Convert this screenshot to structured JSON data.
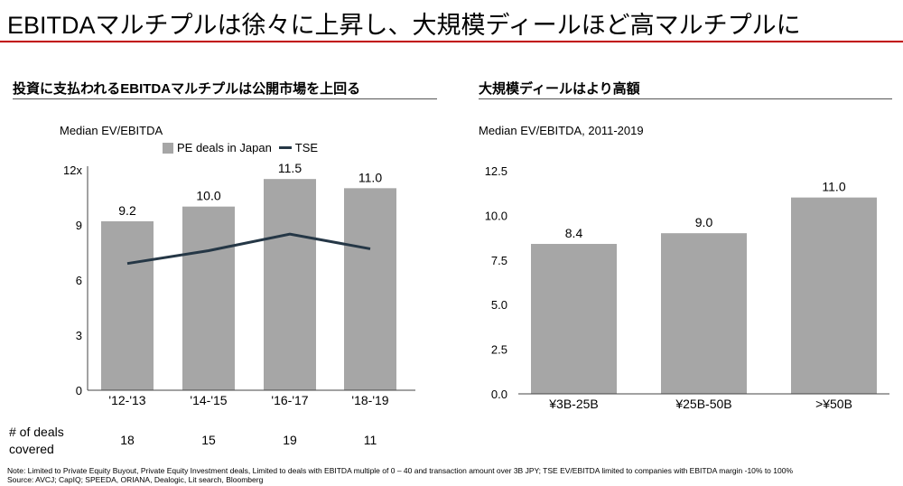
{
  "title": "EBITDAマルチプルは徐々に上昇し、大規模ディールほど高マルチプルに",
  "left_heading": "投資に支払われるEBITDAマルチプルは公開市場を上回る",
  "right_heading": "大規模ディールはより高額",
  "deals_label_1": "# of deals",
  "deals_label_2": "covered",
  "deals": [
    "18",
    "15",
    "19",
    "11"
  ],
  "notes": {
    "note": "Note: Limited to Private Equity Buyout, Private Equity Investment deals, Limited to deals with EBITDA multiple of 0 – 40 and transaction amount over 3B JPY; TSE EV/EBITDA limited to companies with EBITDA margin -10% to 100%",
    "source": "Source: AVCJ; CapIQ; SPEEDA, ORIANA, Dealogic, Lit search, Bloomberg"
  },
  "colors": {
    "bar": "#a6a6a6",
    "line": "#253746",
    "accent": "#c00000"
  },
  "chart_data": [
    {
      "type": "bar",
      "title": "Median EV/EBITDA",
      "categories": [
        "'12-'13",
        "'14-'15",
        "'16-'17",
        "'18-'19"
      ],
      "series": [
        {
          "name": "PE deals in Japan",
          "type": "bar",
          "values": [
            9.2,
            10.0,
            11.5,
            11.0
          ],
          "labels": [
            "9.2",
            "10.0",
            "11.5",
            "11.0"
          ]
        },
        {
          "name": "TSE",
          "type": "line",
          "values": [
            6.9,
            7.6,
            8.5,
            7.7
          ]
        }
      ],
      "ylim": [
        0,
        12
      ],
      "yticks": [
        "0",
        "3",
        "6",
        "9",
        "12x"
      ],
      "ytick_values": [
        0,
        3,
        6,
        9,
        12
      ],
      "legend": "top"
    },
    {
      "type": "bar",
      "title": "Median EV/EBITDA, 2011-2019",
      "categories": [
        "¥3B-25B",
        "¥25B-50B",
        ">¥50B"
      ],
      "values": [
        8.4,
        9.0,
        11.0
      ],
      "labels": [
        "8.4",
        "9.0",
        "11.0"
      ],
      "ylim": [
        0,
        12.5
      ],
      "yticks": [
        "0.0",
        "2.5",
        "5.0",
        "7.5",
        "10.0",
        "12.5"
      ],
      "ytick_values": [
        0,
        2.5,
        5,
        7.5,
        10,
        12.5
      ]
    }
  ]
}
